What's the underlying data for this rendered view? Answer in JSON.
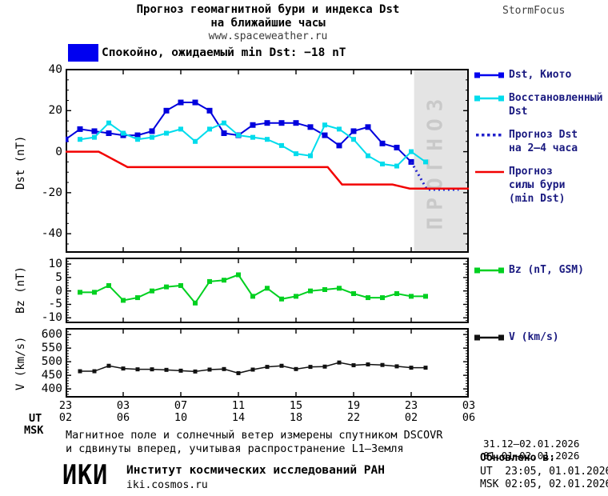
{
  "header": {
    "title_line1": "Прогноз геомагнитной бури и индекса Dst",
    "title_line2": "на ближайшие часы",
    "url": "www.spaceweather.ru",
    "brand": "StormFocus"
  },
  "status_bar": {
    "label": "Спокойно, ожидаемый min Dst: −18 nT",
    "swatch_color": "#0000f0"
  },
  "chart_data": [
    {
      "type": "line",
      "name": "dst-panel",
      "ylabel": "Dst (nT)",
      "ylim": [
        -49.3,
        40.4
      ],
      "yticks_major": [
        40,
        20,
        0,
        -20,
        -40
      ],
      "ytick_minor_step": 5,
      "xlim": [
        0,
        28
      ],
      "xticks_major": [
        0,
        4,
        8,
        12,
        16,
        20,
        24,
        28
      ],
      "grid": false,
      "forecast_region": {
        "x_start": 24.2,
        "x_end": 28,
        "fill": "#e4e4e4",
        "label": "ПРОГНОЗ",
        "label_color": "#c9c9c9"
      },
      "series": [
        {
          "name": "Dst, Киото",
          "color": "#0000dd",
          "marker": 7,
          "x_start": 0,
          "x_step": 1,
          "values": [
            6,
            11,
            10,
            9,
            8,
            8,
            10,
            20,
            24,
            24,
            20,
            9,
            8,
            13,
            14,
            14,
            14,
            12,
            8,
            3,
            10,
            12,
            4,
            2,
            -5
          ]
        },
        {
          "name": "Восстановленный Dst",
          "color": "#00dcec",
          "marker": 6,
          "x_start": 1,
          "x_step": 1,
          "values": [
            6,
            7,
            14,
            9,
            6,
            7,
            9,
            11,
            5,
            11,
            14,
            8,
            7,
            6,
            3,
            -1,
            -2,
            13,
            11,
            6,
            -2,
            -6,
            -7,
            0,
            -5
          ]
        },
        {
          "name": "Прогноз Dst на 2–4 часа",
          "color": "#2222cc",
          "style": "dotted",
          "points": [
            [
              24,
              -5
            ],
            [
              25.1,
              -18.5
            ],
            [
              27.3,
              -18.5
            ]
          ]
        },
        {
          "name": "Прогноз силы бури (min Dst)",
          "color": "#f20000",
          "style": "line",
          "width": 2.5,
          "points": [
            [
              0,
              0
            ],
            [
              2.3,
              0
            ],
            [
              4.3,
              -7.5
            ],
            [
              18.2,
              -7.5
            ],
            [
              19.2,
              -16
            ],
            [
              22.7,
              -16
            ],
            [
              23.9,
              -18
            ],
            [
              28,
              -18
            ]
          ]
        }
      ],
      "legend": [
        {
          "swatch": "line-markers",
          "color": "#0000ee",
          "lines": [
            "Dst, Киото"
          ]
        },
        {
          "swatch": "line-markers",
          "color": "#00dcec",
          "lines": [
            "Восстановленный",
            "Dst"
          ]
        },
        {
          "swatch": "dots",
          "color": "#2222cc",
          "lines": [
            "Прогноз Dst",
            "на 2–4 часа"
          ]
        },
        {
          "swatch": "line",
          "color": "#f20000",
          "lines": [
            "Прогноз",
            "силы бури",
            "(min Dst)"
          ]
        }
      ]
    },
    {
      "type": "line",
      "name": "bz-panel",
      "ylabel": "Bz (nT)",
      "ylim": [
        -12,
        12.4
      ],
      "yticks_major": [
        10,
        5,
        0,
        -5,
        -10
      ],
      "ytick_minor_step": 1,
      "xlim": [
        0,
        28
      ],
      "xticks_major": [
        0,
        4,
        8,
        12,
        16,
        20,
        24,
        28
      ],
      "grid": false,
      "series": [
        {
          "name": "Bz (nT, GSM)",
          "color": "#00d020",
          "marker": 6,
          "x_start": 1,
          "x_step": 1,
          "values": [
            -0.5,
            -0.5,
            2,
            -3.5,
            -2.5,
            0,
            1.5,
            2,
            -4.5,
            3.5,
            4,
            6,
            -2,
            1,
            -3,
            -2,
            0,
            0.5,
            1,
            -1,
            -2.5,
            -2.5,
            -1,
            -2,
            -2
          ]
        }
      ],
      "legend": [
        {
          "swatch": "line-markers",
          "color": "#00d020",
          "lines": [
            "Bz (nT, GSM)"
          ]
        }
      ]
    },
    {
      "type": "line",
      "name": "v-panel",
      "ylabel": "V (km/s)",
      "ylim": [
        368,
        624
      ],
      "yticks_major": [
        600,
        550,
        500,
        450,
        400
      ],
      "ytick_minor_step": 10,
      "xlim": [
        0,
        28
      ],
      "xticks_major": [
        0,
        4,
        8,
        12,
        16,
        20,
        24,
        28
      ],
      "grid": false,
      "series": [
        {
          "name": "V (km/s)",
          "color": "#111111",
          "marker": 5,
          "width": 1.5,
          "x_start": 1,
          "x_step": 1,
          "values": [
            465,
            465,
            485,
            475,
            472,
            472,
            470,
            467,
            464,
            471,
            473,
            458,
            471,
            481,
            485,
            473,
            481,
            482,
            497,
            487,
            490,
            488,
            483,
            478,
            478
          ]
        }
      ],
      "legend": [
        {
          "swatch": "line-markers",
          "color": "#111111",
          "lines": [
            "V (km/s)"
          ]
        }
      ]
    }
  ],
  "xaxis": {
    "ut_label": "UT",
    "msk_label": "MSK",
    "ut_ticks": [
      "23",
      "03",
      "07",
      "11",
      "15",
      "19",
      "23",
      "03"
    ],
    "msk_ticks": [
      "02",
      "06",
      "10",
      "14",
      "18",
      "22",
      "02",
      "06"
    ],
    "ut_range": "31.12–02.01.2026",
    "msk_range": "01.01–02.01.2026"
  },
  "footer": {
    "note_line1": "Магнитное поле и солнечный ветер измерены спутником DSCOVR",
    "note_line2": "и сдвинуты вперед, учитывая распространение L1–Земля",
    "updated_label": "Обновлено в:",
    "updated_ut": "UT  23:05, 01.01.2026",
    "updated_msk": "MSK 02:05, 02.01.2026",
    "logo": "ИКИ",
    "institute": "Институт космических исследований РАН",
    "site": "iki.cosmos.ru"
  }
}
